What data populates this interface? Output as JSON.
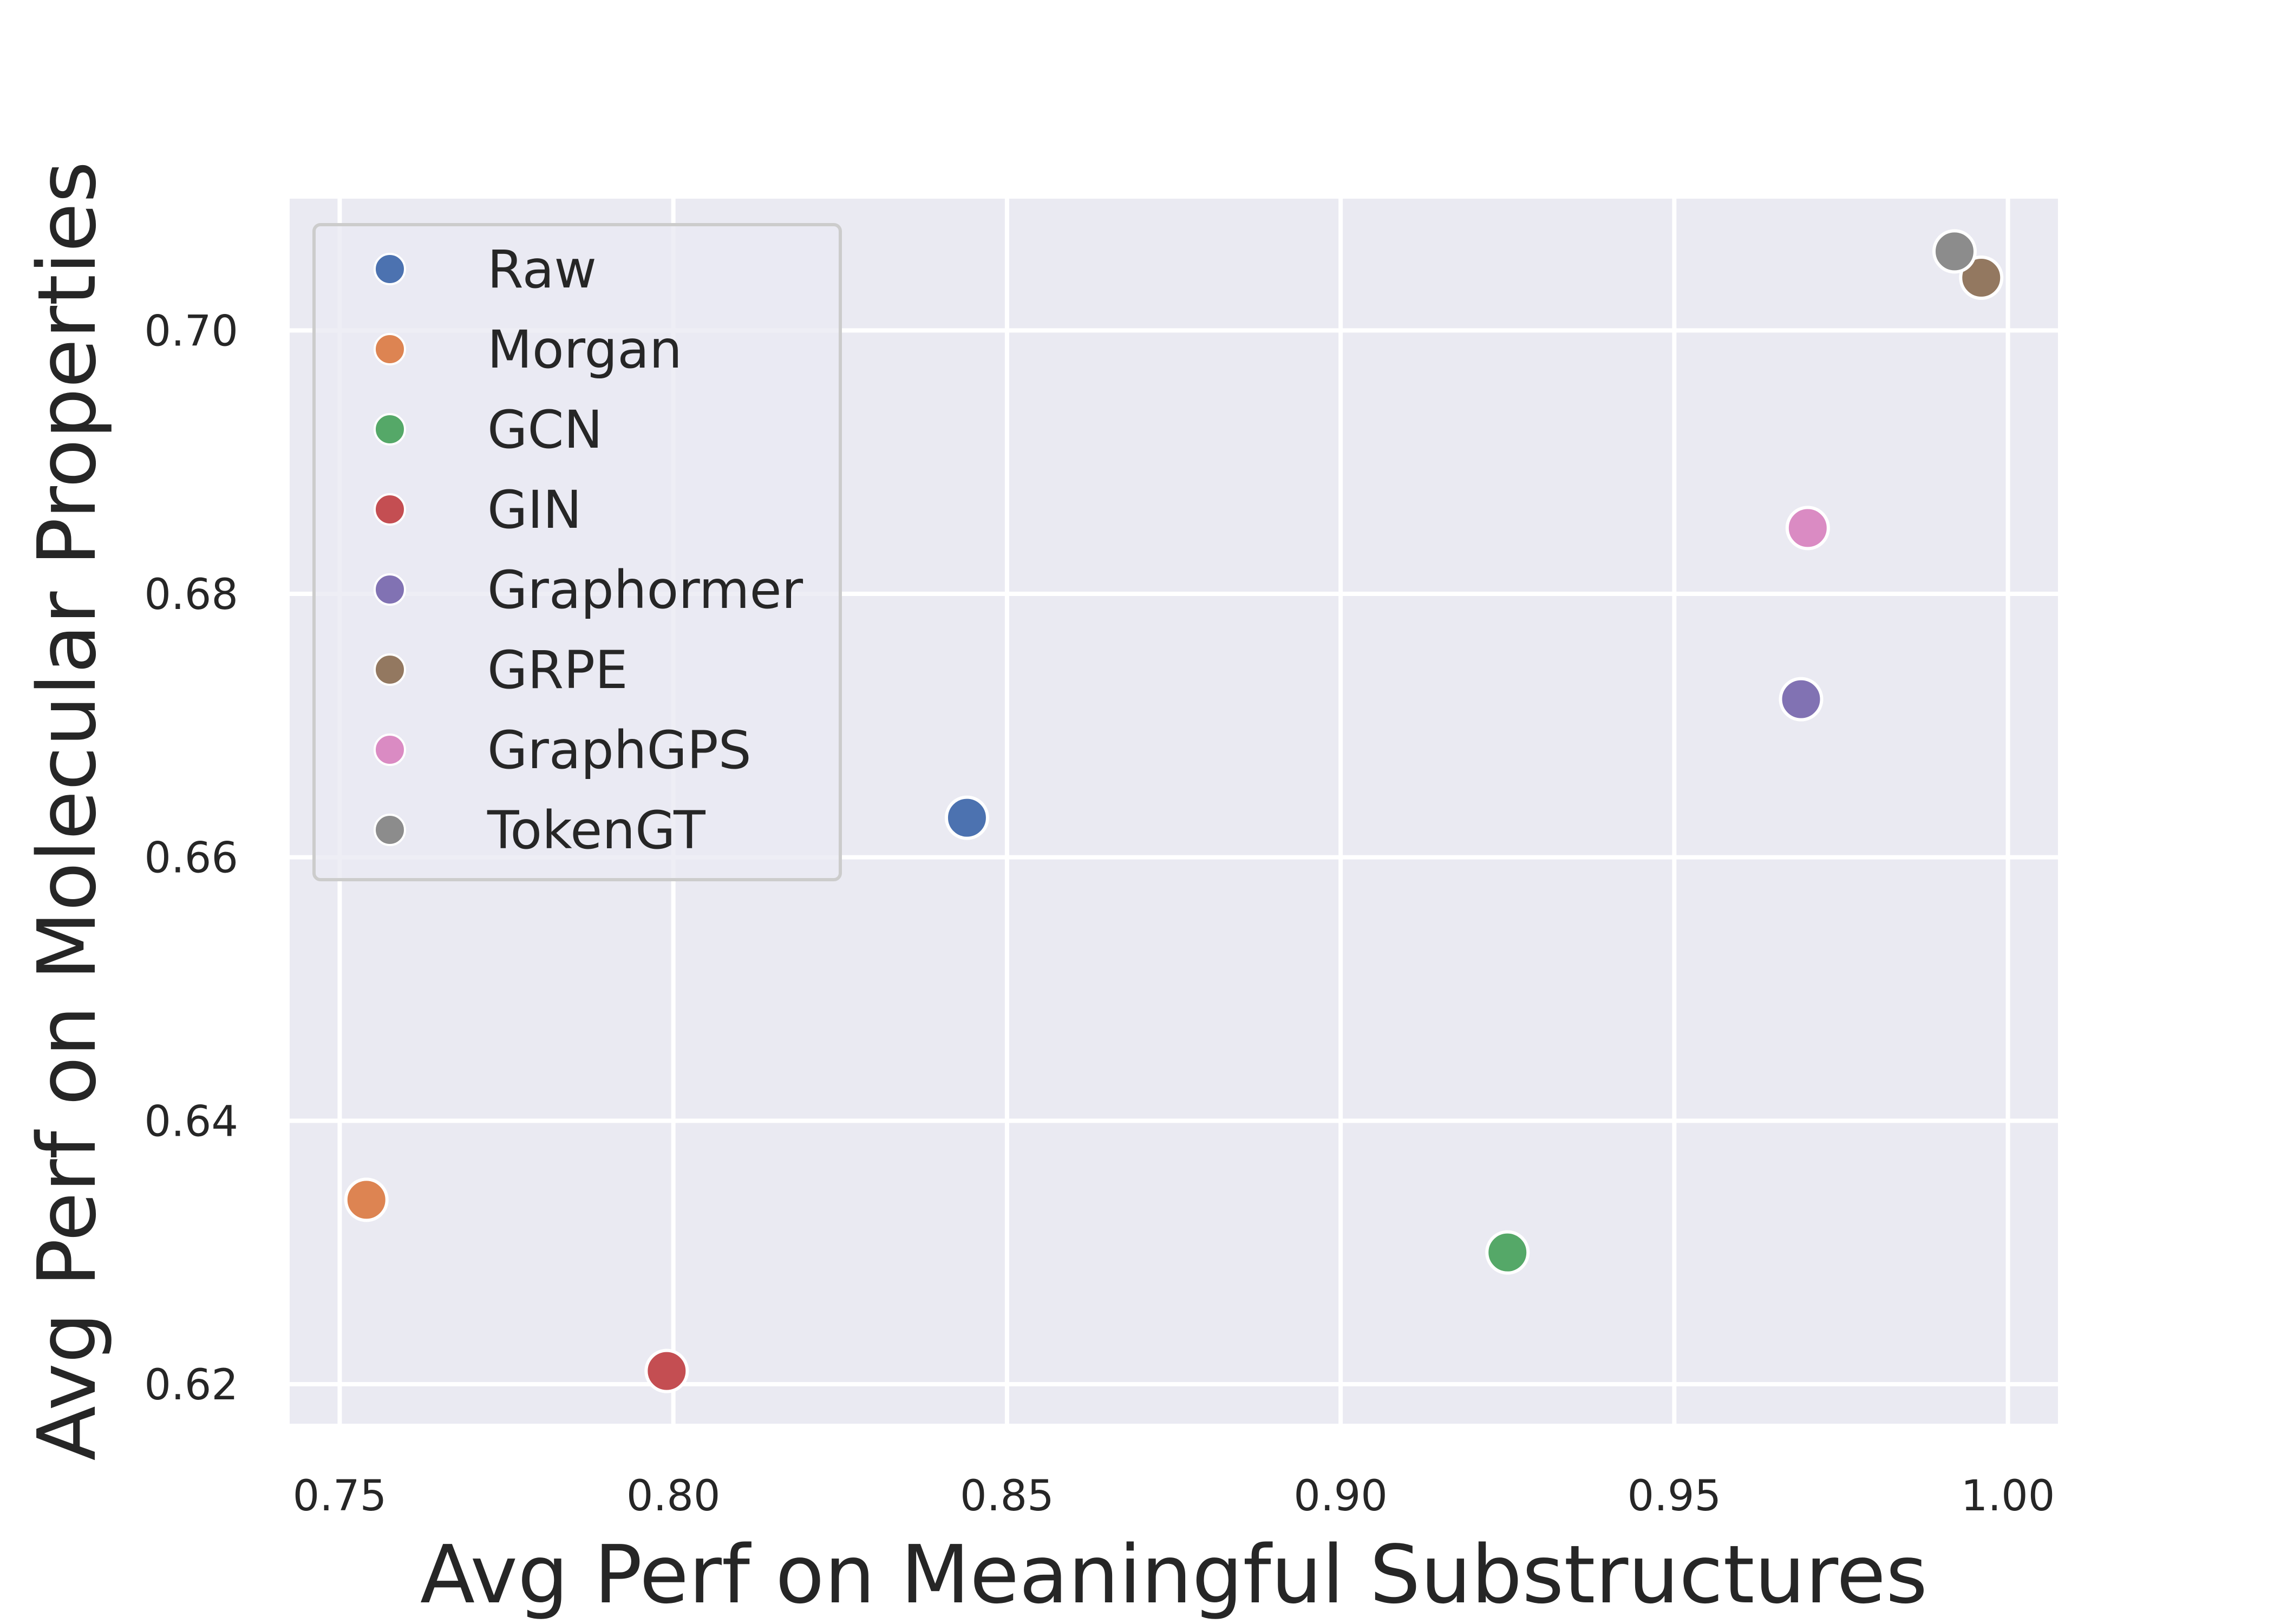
{
  "chart_data": {
    "type": "scatter",
    "xlabel": "Avg Perf on Meaningful Substructures",
    "ylabel": "Avg Perf on Molecular Properties",
    "xlim": [
      0.7425,
      1.0075
    ],
    "ylim": [
      0.617,
      0.71
    ],
    "x_ticks": [
      "0.75",
      "0.80",
      "0.85",
      "0.90",
      "0.95",
      "1.00"
    ],
    "y_ticks": [
      "0.62",
      "0.64",
      "0.66",
      "0.68",
      "0.70"
    ],
    "grid": true,
    "legend_position": "top-left",
    "series": [
      {
        "name": "Raw",
        "color": "#4c72b0",
        "x": 0.844,
        "y": 0.663
      },
      {
        "name": "Morgan",
        "color": "#dd8452",
        "x": 0.754,
        "y": 0.634
      },
      {
        "name": "GCN",
        "color": "#55a868",
        "x": 0.925,
        "y": 0.63
      },
      {
        "name": "GIN",
        "color": "#c44e52",
        "x": 0.799,
        "y": 0.621
      },
      {
        "name": "Graphormer",
        "color": "#8172b3",
        "x": 0.969,
        "y": 0.672
      },
      {
        "name": "GRPE",
        "color": "#937860",
        "x": 0.996,
        "y": 0.704
      },
      {
        "name": "GraphGPS",
        "color": "#da8bc3",
        "x": 0.97,
        "y": 0.685
      },
      {
        "name": "TokenGT",
        "color": "#8c8c8c",
        "x": 0.992,
        "y": 0.706
      }
    ]
  }
}
